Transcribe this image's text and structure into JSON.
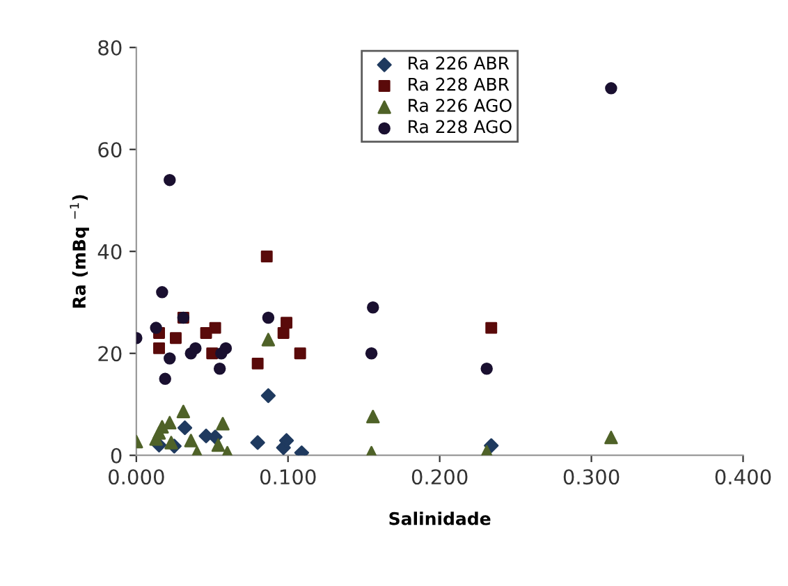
{
  "chart_data": {
    "type": "scatter",
    "xlabel": "Salinidade",
    "ylabel": "Ra (mBq $^{−1}$)",
    "xlim": [
      0,
      0.4
    ],
    "xticks": [
      {
        "value": 0,
        "label": "0.000"
      },
      {
        "value": 0.1,
        "label": "0.100"
      },
      {
        "value": 0.2,
        "label": "0.200"
      },
      {
        "value": 0.3,
        "label": "0.300"
      },
      {
        "value": 0.4,
        "label": "0.400"
      }
    ],
    "ylim": [
      0,
      80
    ],
    "yticks": [
      0,
      20,
      40,
      60,
      80
    ],
    "grid": false,
    "legend": "top",
    "series": [
      {
        "name": "Ra 226 ABR",
        "color": "#1f3a5f",
        "marker": "diamond",
        "x": [
          0.015,
          0.025,
          0.032,
          0.046,
          0.052,
          0.08,
          0.087,
          0.097,
          0.099,
          0.109,
          0.234
        ],
        "values": [
          2,
          1.8,
          5.4,
          3.8,
          3.6,
          2.5,
          11.7,
          1.5,
          2.9,
          0.5,
          1.9
        ]
      },
      {
        "name": "Ra 228 ABR",
        "color": "#5a0a0a",
        "marker": "square",
        "x": [
          0.015,
          0.015,
          0.026,
          0.031,
          0.046,
          0.05,
          0.052,
          0.08,
          0.086,
          0.097,
          0.099,
          0.108,
          0.234
        ],
        "values": [
          24,
          21,
          23,
          27,
          24,
          20,
          25,
          18,
          39,
          24,
          26,
          20,
          25
        ]
      },
      {
        "name": "Ra 226 AGO",
        "color": "#4f6228",
        "marker": "triangle",
        "x": [
          0.0,
          0.013,
          0.015,
          0.017,
          0.022,
          0.023,
          0.031,
          0.036,
          0.04,
          0.054,
          0.057,
          0.06,
          0.087,
          0.155,
          0.156,
          0.231,
          0.313
        ],
        "values": [
          2.7,
          3.2,
          4.4,
          5.6,
          6.4,
          2.5,
          8.6,
          2.9,
          0.5,
          2,
          6.2,
          0.5,
          22.7,
          0.5,
          7.6,
          0.7,
          3.5
        ]
      },
      {
        "name": "Ra 228 AGO",
        "color": "#1a1030",
        "marker": "circle",
        "x": [
          0.0,
          0.013,
          0.017,
          0.022,
          0.019,
          0.022,
          0.031,
          0.036,
          0.039,
          0.055,
          0.056,
          0.059,
          0.087,
          0.155,
          0.156,
          0.231,
          0.313
        ],
        "values": [
          23,
          25,
          32,
          54,
          15,
          19,
          27,
          20,
          21,
          17,
          20,
          21,
          27,
          20,
          29,
          17,
          72
        ]
      }
    ]
  }
}
